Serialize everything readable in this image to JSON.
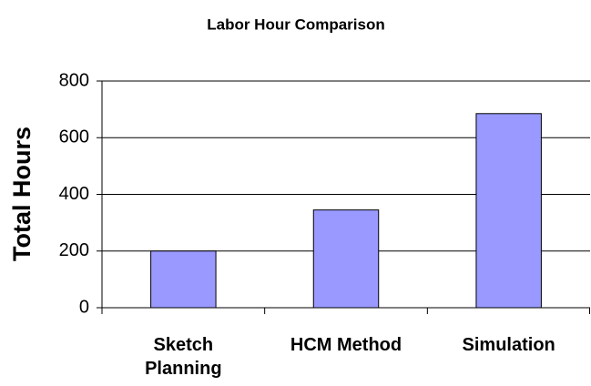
{
  "chart_data": {
    "type": "bar",
    "title": "Labor Hour Comparison",
    "y_label": "Total Hours",
    "categories": [
      "Sketch Planning",
      "HCM Method",
      "Simulation"
    ],
    "values": [
      200,
      345,
      685
    ],
    "color": "#9999ff",
    "ylim": [
      0,
      800
    ],
    "yticks": [
      0,
      200,
      400,
      600,
      800
    ],
    "grid": true
  }
}
